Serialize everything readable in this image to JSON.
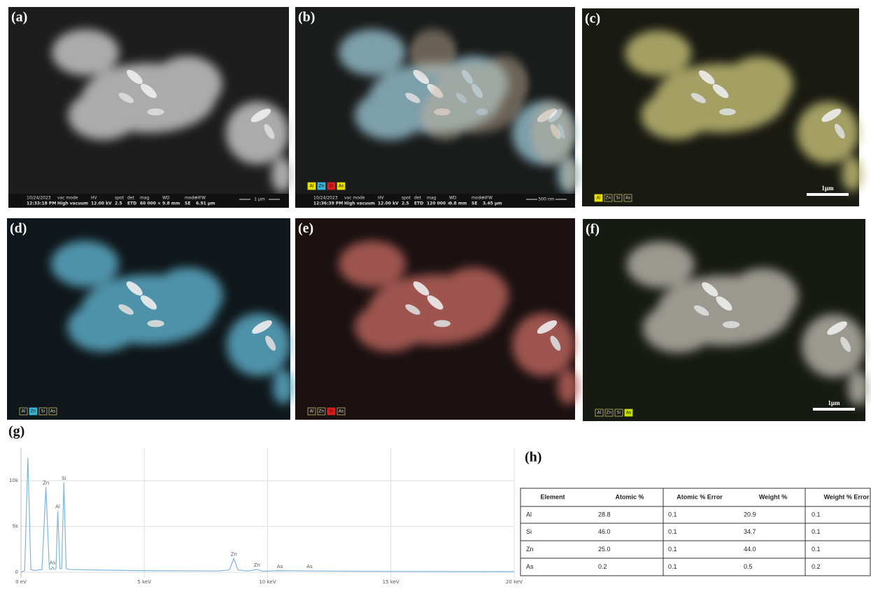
{
  "panels": [
    {
      "label": "(a)",
      "tags": [],
      "info": [
        [
          "10/24/2023",
          "12:33:18 PM"
        ],
        [
          "vac mode",
          "High vacuum"
        ],
        [
          "HV",
          "12.00 kV"
        ],
        [
          "spot",
          "2.5"
        ],
        [
          "det",
          "ETD"
        ],
        [
          "mag",
          "60 000 ×"
        ],
        [
          "WD",
          "9.8 mm"
        ],
        [
          "mode",
          "SE"
        ],
        [
          "HFW",
          "6.91 µm"
        ]
      ],
      "info_scale": "1 µm",
      "fill": "#c4c4c4",
      "bg": "#1d1d1d"
    },
    {
      "label": "(b)",
      "tags": [
        {
          "text": "Al",
          "color": "#e8e000"
        },
        {
          "text": "Zn",
          "color": "#35b6d8"
        },
        {
          "text": "Si",
          "color": "#d42020"
        },
        {
          "text": "As",
          "color": "#e8e000"
        }
      ],
      "info": [
        [
          "10/24/2023",
          "12:36:39 PM"
        ],
        [
          "vac mode",
          "High vacuum"
        ],
        [
          "HV",
          "12.00 kV"
        ],
        [
          "spot",
          "2.5"
        ],
        [
          "det",
          "ETD"
        ],
        [
          "mag",
          "120 000 ×"
        ],
        [
          "WD",
          "9.8 mm"
        ],
        [
          "mode",
          "SE"
        ],
        [
          "HFW",
          "3.45 µm"
        ]
      ],
      "info_scale": "500 nm",
      "fill": "#8fb7c4",
      "bg": "#1a1c1c"
    },
    {
      "label": "(c)",
      "tags": [
        {
          "text": "Al",
          "color": "#e8e000"
        },
        {
          "text": "Zn",
          "color": null
        },
        {
          "text": "Si",
          "color": null
        },
        {
          "text": "As",
          "color": null
        }
      ],
      "scale": "1µm",
      "fill": "#bdb872",
      "bg": "#191a12"
    },
    {
      "label": "(d)",
      "tags": [
        {
          "text": "Al",
          "color": null
        },
        {
          "text": "Zn",
          "color": "#35b6d8"
        },
        {
          "text": "Si",
          "color": null
        },
        {
          "text": "As",
          "color": null
        }
      ],
      "fill": "#5aa8c2",
      "bg": "#0f171b"
    },
    {
      "label": "(e)",
      "tags": [
        {
          "text": "Al",
          "color": null
        },
        {
          "text": "Zn",
          "color": null
        },
        {
          "text": "Si",
          "color": "#d42020"
        },
        {
          "text": "As",
          "color": null
        }
      ],
      "fill": "#b5605a",
      "bg": "#1b1111"
    },
    {
      "label": "(f)",
      "tags": [
        {
          "text": "Al",
          "color": null
        },
        {
          "text": "Zn",
          "color": null
        },
        {
          "text": "Si",
          "color": null
        },
        {
          "text": "As",
          "color": "#c8e000"
        }
      ],
      "scale": "1µm",
      "fill": "#b0b0a6",
      "bg": "#171913"
    }
  ],
  "spectrum_label": "(g)",
  "chart_data": {
    "type": "line",
    "x": [
      0,
      0.15,
      0.28,
      0.4,
      0.55,
      0.85,
      1.01,
      1.15,
      1.22,
      1.28,
      1.35,
      1.42,
      1.49,
      1.58,
      1.65,
      1.74,
      1.83,
      2.0,
      3,
      5,
      8,
      8.45,
      8.63,
      8.8,
      9.2,
      9.57,
      9.8,
      10.5,
      11.7,
      15,
      20
    ],
    "series": [
      {
        "color": "#7fb6d9",
        "values": [
          0,
          200,
          12500,
          300,
          200,
          300,
          9300,
          400,
          300,
          600,
          300,
          400,
          6700,
          400,
          400,
          9800,
          400,
          300,
          250,
          180,
          150,
          250,
          1500,
          250,
          150,
          300,
          120,
          180,
          150,
          100,
          80
        ]
      }
    ],
    "annotations": [
      {
        "label": "Zn",
        "x": 1.01,
        "y": 9300
      },
      {
        "label": "Si",
        "x": 1.74,
        "y": 9800
      },
      {
        "label": "Al",
        "x": 1.49,
        "y": 6700
      },
      {
        "label": "As",
        "x": 1.28,
        "y": 600
      },
      {
        "label": "Zn",
        "x": 8.63,
        "y": 1500
      },
      {
        "label": "Zn",
        "x": 9.57,
        "y": 300
      },
      {
        "label": "As",
        "x": 10.5,
        "y": 180
      },
      {
        "label": "As",
        "x": 11.7,
        "y": 150
      }
    ],
    "xlim": [
      0,
      20
    ],
    "ylim": [
      -600,
      13600
    ],
    "xticks": [
      {
        "value": 0,
        "label": "0 eV"
      },
      {
        "value": 5,
        "label": "5 keV"
      },
      {
        "value": 10,
        "label": "10 keV"
      },
      {
        "value": 15,
        "label": "15 keV"
      },
      {
        "value": 20,
        "label": "20 keV"
      }
    ],
    "yticks": [
      {
        "value": 0,
        "label": "0"
      },
      {
        "value": 5000,
        "label": "5k"
      },
      {
        "value": 10000,
        "label": "10k"
      }
    ],
    "grid": true
  },
  "table_label": "(h)",
  "table": {
    "header": [
      "Element",
      "Atomic %",
      "Atomic % Error",
      "Weight %",
      "Weight % Error"
    ],
    "rows": [
      [
        "Al",
        "28.8",
        "0.1",
        "20.9",
        "0.1"
      ],
      [
        "Si",
        "46.0",
        "0.1",
        "34.7",
        "0.1"
      ],
      [
        "Zn",
        "25.0",
        "0.1",
        "44.0",
        "0.1"
      ],
      [
        "As",
        "0.2",
        "0.1",
        "0.5",
        "0.2"
      ]
    ]
  }
}
